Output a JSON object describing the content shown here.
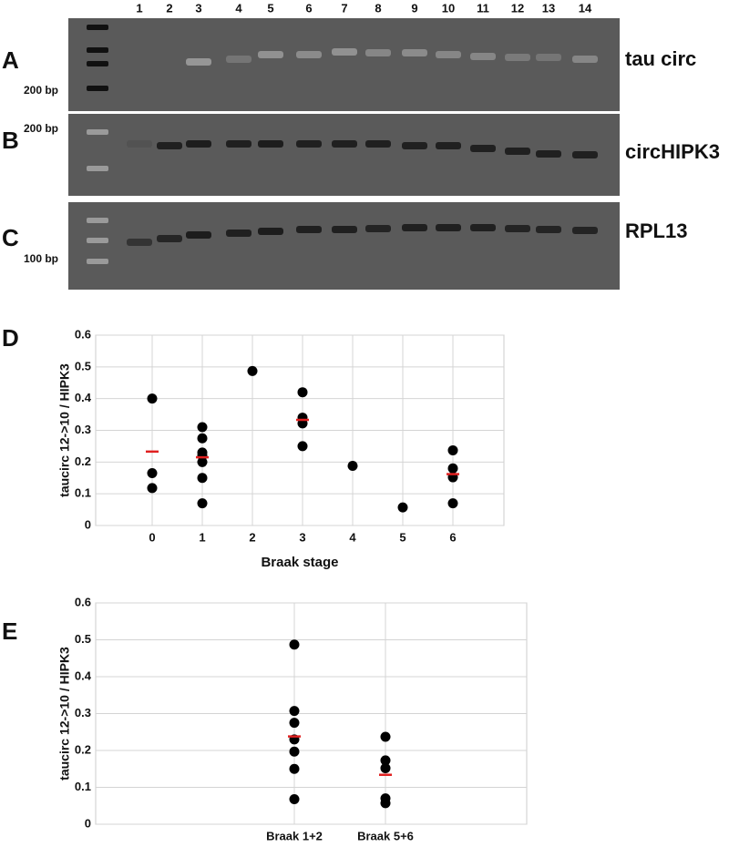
{
  "lanes": [
    "1",
    "2",
    "3",
    "4",
    "5",
    "6",
    "7",
    "8",
    "9",
    "10",
    "11",
    "12",
    "13",
    "14"
  ],
  "gels": [
    {
      "label": "A",
      "name": "tau circ",
      "marker": "200 bp"
    },
    {
      "label": "B",
      "name": "circHIPK3",
      "marker": "200 bp"
    },
    {
      "label": "C",
      "name": "RPL13",
      "marker": "100 bp"
    }
  ],
  "chart_data": [
    {
      "type": "scatter",
      "panel_label": "D",
      "y_label": "taucirc 12->10 / HIPK3",
      "x_label": "Braak stage",
      "categories": [
        "0",
        "1",
        "2",
        "3",
        "4",
        "5",
        "6"
      ],
      "series": [
        {
          "color": "#000000",
          "values": [
            [
              0.4,
              0.165,
              0.118
            ],
            [
              0.31,
              0.275,
              0.23,
              0.22,
              0.2,
              0.15,
              0.07
            ],
            [
              0.487
            ],
            [
              0.42,
              0.34,
              0.322,
              0.25
            ],
            [
              0.188
            ],
            [
              0.057
            ],
            [
              0.237,
              0.18,
              0.152,
              0.07
            ]
          ]
        },
        {
          "color": "#e02020",
          "marker": "dash",
          "values": [
            0.233,
            0.215,
            null,
            0.333,
            null,
            null,
            0.162
          ]
        }
      ],
      "ylim": [
        0,
        0.6
      ],
      "yticks": [
        0,
        0.1,
        0.2,
        0.3,
        0.4,
        0.5,
        0.6
      ],
      "grid": true
    },
    {
      "type": "scatter",
      "panel_label": "E",
      "y_label": "taucirc 12->10 / HIPK3",
      "categories": [
        "Braak 1+2",
        "Braak 5+6"
      ],
      "series": [
        {
          "color": "#000000",
          "values": [
            [
              0.487,
              0.307,
              0.275,
              0.23,
              0.197,
              0.15,
              0.068
            ],
            [
              0.237,
              0.173,
              0.152,
              0.07,
              0.057
            ]
          ]
        },
        {
          "color": "#e02020",
          "marker": "dash",
          "values": [
            0.238,
            0.134
          ]
        }
      ],
      "ylim": [
        0,
        0.6
      ],
      "yticks": [
        0,
        0.1,
        0.2,
        0.3,
        0.4,
        0.5,
        0.6
      ],
      "grid": true
    }
  ]
}
